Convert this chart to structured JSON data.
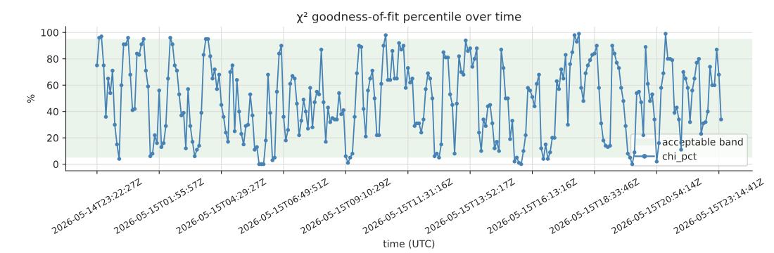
{
  "chart_data": {
    "type": "line",
    "title": "χ² goodness-of-fit percentile over time",
    "xlabel": "time (UTC)",
    "ylabel": "%",
    "categories": [
      "2026-05-14T23:22:27Z",
      null,
      null,
      null,
      null,
      null,
      null,
      null,
      null,
      null,
      null,
      null,
      null,
      null,
      null,
      null,
      null,
      null,
      null,
      null,
      null,
      null,
      null,
      null,
      null,
      null,
      null,
      null,
      "2026-05-15T01:55:57Z",
      null,
      null,
      null,
      null,
      null,
      null,
      null,
      null,
      null,
      null,
      null,
      null,
      null,
      null,
      null,
      null,
      null,
      null,
      null,
      null,
      null,
      null,
      null,
      null,
      null,
      null,
      null,
      "2026-05-15T04:29:27Z",
      null,
      null,
      null,
      null,
      null,
      null,
      null,
      null,
      null,
      null,
      null,
      null,
      null,
      null,
      null,
      null,
      null,
      null,
      null,
      null,
      null,
      null,
      null,
      null,
      null,
      null,
      null,
      "2026-05-15T06:49:51Z",
      null,
      null,
      null,
      null,
      null,
      null,
      null,
      null,
      null,
      null,
      null,
      null,
      null,
      null,
      null,
      null,
      null,
      null,
      null,
      null,
      null,
      null,
      null,
      null,
      null,
      null,
      null,
      "2026-05-15T09:10:29Z",
      null,
      null,
      null,
      null,
      null,
      null,
      null,
      null,
      null,
      null,
      null,
      null,
      null,
      null,
      null,
      null,
      null,
      null,
      null,
      null,
      null,
      null,
      null,
      null,
      null,
      null,
      null,
      "2026-05-15T11:31:16Z",
      null,
      null,
      null,
      null,
      null,
      null,
      null,
      null,
      null,
      null,
      null,
      null,
      null,
      null,
      null,
      null,
      null,
      null,
      null,
      null,
      null,
      null,
      null,
      null,
      null,
      null,
      null,
      "2026-05-15T13:52:17Z",
      null,
      null,
      null,
      null,
      null,
      null,
      null,
      null,
      null,
      null,
      null,
      null,
      null,
      null,
      null,
      null,
      null,
      null,
      null,
      null,
      null,
      null,
      null,
      null,
      null,
      null,
      null,
      "2026-05-15T16:13:16Z",
      null,
      null,
      null,
      null,
      null,
      null,
      null,
      null,
      null,
      null,
      null,
      null,
      null,
      null,
      null,
      null,
      null,
      null,
      null,
      null,
      null,
      null,
      null,
      null,
      null,
      null,
      null,
      "2026-05-15T18:33:46Z",
      null,
      null,
      null,
      null,
      null,
      null,
      null,
      null,
      null,
      null,
      null,
      null,
      null,
      null,
      null,
      null,
      null,
      null,
      null,
      null,
      null,
      null,
      null,
      null,
      null,
      null,
      null,
      "2026-05-15T20:54:14Z",
      null,
      null,
      null,
      null,
      null,
      null,
      null,
      null,
      null,
      null,
      null,
      null,
      null,
      null,
      null,
      null,
      null,
      null,
      null,
      null,
      null,
      null,
      null,
      null,
      null,
      null,
      null,
      "2026-05-15T23:14:41Z",
      null
    ],
    "series": [
      {
        "name": "chi_pct",
        "color": "#4682b4",
        "values": [
          75,
          96,
          97,
          75,
          36,
          65,
          54,
          71,
          30,
          15,
          4,
          60,
          91,
          91,
          96,
          68,
          41,
          42,
          84,
          83,
          91,
          95,
          71,
          59,
          6,
          8,
          22,
          16,
          56,
          13,
          16,
          29,
          65,
          96,
          91,
          75,
          71,
          53,
          37,
          39,
          12,
          57,
          29,
          17,
          6,
          11,
          14,
          39,
          83,
          95,
          95,
          82,
          65,
          72,
          57,
          68,
          45,
          36,
          24,
          17,
          70,
          75,
          25,
          64,
          40,
          23,
          15,
          29,
          30,
          53,
          37,
          11,
          13,
          0,
          0,
          0,
          18,
          68,
          39,
          3,
          5,
          55,
          84,
          90,
          36,
          18,
          26,
          61,
          67,
          65,
          46,
          22,
          33,
          49,
          40,
          27,
          58,
          28,
          47,
          55,
          53,
          87,
          47,
          17,
          43,
          32,
          35,
          34,
          34,
          54,
          38,
          41,
          6,
          1,
          5,
          8,
          36,
          69,
          90,
          89,
          42,
          21,
          56,
          65,
          71,
          50,
          22,
          22,
          61,
          90,
          98,
          64,
          64,
          86,
          65,
          65,
          92,
          87,
          90,
          58,
          73,
          62,
          65,
          29,
          31,
          31,
          24,
          34,
          57,
          69,
          65,
          50,
          6,
          8,
          5,
          15,
          85,
          81,
          81,
          53,
          45,
          8,
          46,
          82,
          70,
          68,
          94,
          86,
          88,
          74,
          80,
          88,
          24,
          10,
          34,
          29,
          44,
          45,
          31,
          12,
          17,
          10,
          87,
          73,
          50,
          50,
          19,
          33,
          2,
          5,
          1,
          0,
          10,
          22,
          58,
          56,
          51,
          44,
          61,
          68,
          12,
          4,
          15,
          4,
          9,
          20,
          20,
          63,
          57,
          72,
          65,
          83,
          30,
          76,
          85,
          98,
          93,
          99,
          58,
          48,
          69,
          75,
          79,
          83,
          84,
          90,
          58,
          31,
          18,
          14,
          13,
          14,
          90,
          84,
          77,
          73,
          58,
          48,
          29,
          8,
          5,
          0,
          9,
          54,
          55,
          47,
          22,
          89,
          61,
          48,
          53,
          34,
          2,
          16,
          58,
          69,
          99,
          80,
          80,
          79,
          39,
          43,
          34,
          11,
          70,
          65,
          58,
          32,
          56,
          65,
          77,
          80,
          23,
          31,
          32,
          40,
          74,
          60,
          60,
          87,
          68,
          34
        ]
      }
    ],
    "bands": [
      {
        "axis": "y",
        "from": 5,
        "to": 95,
        "label": "acceptable band",
        "color": "#eaf4ea"
      }
    ],
    "ylim": [
      -5,
      104.5
    ],
    "yticks": [
      0,
      20,
      40,
      60,
      80,
      100
    ],
    "grid": true,
    "legend": "lower right",
    "marker": "circle",
    "line_style": "solid"
  }
}
